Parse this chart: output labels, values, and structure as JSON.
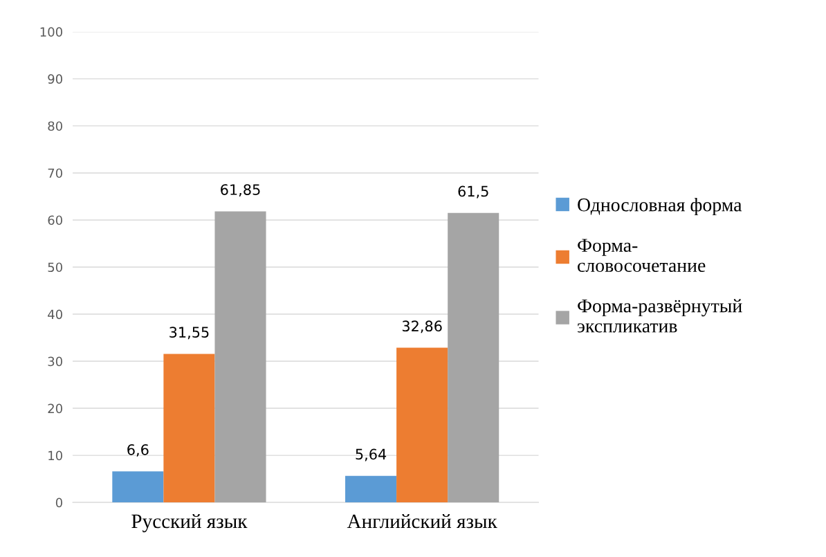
{
  "chart_data": {
    "type": "bar",
    "categories": [
      "Русский язык",
      "Английский язык"
    ],
    "series": [
      {
        "name": "Однословная форма",
        "color": "#5b9bd5",
        "values": [
          6.6,
          5.64
        ],
        "value_labels": [
          "6,6",
          "5,64"
        ]
      },
      {
        "name": "Форма-словосочетание",
        "color": "#ed7d31",
        "values": [
          31.55,
          32.86
        ],
        "value_labels": [
          "31,55",
          "32,86"
        ]
      },
      {
        "name": "Форма-развёрнутый экспликатив",
        "color": "#a5a5a5",
        "values": [
          61.85,
          61.5
        ],
        "value_labels": [
          "61,85",
          "61,5"
        ]
      }
    ],
    "ylim": [
      0,
      100
    ],
    "yticks": [
      0,
      10,
      20,
      30,
      40,
      50,
      60,
      70,
      80,
      90,
      100
    ],
    "grid": "y",
    "legend": "right"
  }
}
